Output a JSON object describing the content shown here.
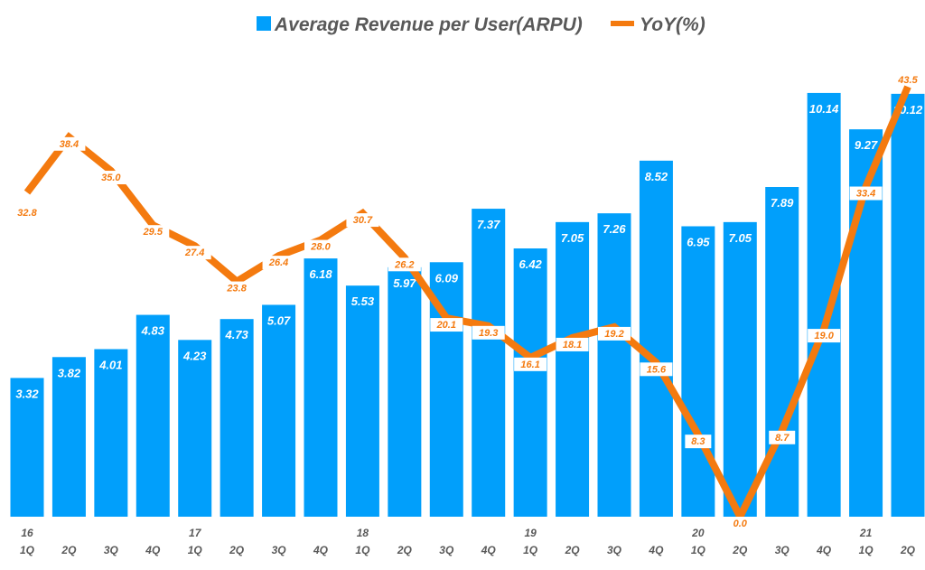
{
  "chart_data": {
    "type": "bar+line",
    "title": "",
    "categories": [
      "1Q",
      "2Q",
      "3Q",
      "4Q",
      "1Q",
      "2Q",
      "3Q",
      "4Q",
      "1Q",
      "2Q",
      "3Q",
      "4Q",
      "1Q",
      "2Q",
      "3Q",
      "4Q",
      "1Q",
      "2Q",
      "3Q",
      "4Q",
      "1Q",
      "2Q"
    ],
    "year_labels": [
      "16",
      "",
      "",
      "",
      "17",
      "",
      "",
      "",
      "18",
      "",
      "",
      "",
      "19",
      "",
      "",
      "",
      "20",
      "",
      "",
      "",
      "21",
      ""
    ],
    "series": [
      {
        "name": "Average Revenue per User(ARPU)",
        "type": "bar",
        "color": "#019ffb",
        "values": [
          3.32,
          3.82,
          4.01,
          4.83,
          4.23,
          4.73,
          5.07,
          6.18,
          5.53,
          5.97,
          6.09,
          7.37,
          6.42,
          7.05,
          7.26,
          8.52,
          6.95,
          7.05,
          7.89,
          10.14,
          9.27,
          10.12
        ],
        "labels": [
          "3.32",
          "3.82",
          "4.01",
          "4.83",
          "4.23",
          "4.73",
          "5.07",
          "6.18",
          "5.53",
          "5.97",
          "6.09",
          "7.37",
          "6.42",
          "7.05",
          "7.26",
          "8.52",
          "6.95",
          "7.05",
          "7.89",
          "10.14",
          "9.27",
          "10.12"
        ]
      },
      {
        "name": "YoY(%)",
        "type": "line",
        "color": "#f47a0f",
        "values": [
          32.8,
          38.4,
          35.0,
          29.5,
          27.4,
          23.8,
          26.4,
          28.0,
          30.7,
          26.2,
          20.1,
          19.3,
          16.1,
          18.1,
          19.2,
          15.6,
          8.3,
          0.0,
          8.7,
          19.0,
          33.4,
          43.5
        ],
        "labels": [
          "32.8",
          "38.4",
          "35.0",
          "29.5",
          "27.4",
          "23.8",
          "26.4",
          "28.0",
          "30.7",
          "26.2",
          "20.1",
          "19.3",
          "16.1",
          "18.1",
          "19.2",
          "15.6",
          "8.3",
          "0.0",
          "8.7",
          "19.0",
          "33.4",
          "43.5"
        ]
      }
    ],
    "bar_ylim": [
      0,
      12.3
    ],
    "line_ylim": [
      0,
      52
    ],
    "grid": false,
    "legend": "top-center",
    "xlabel": "",
    "ylabel": ""
  }
}
